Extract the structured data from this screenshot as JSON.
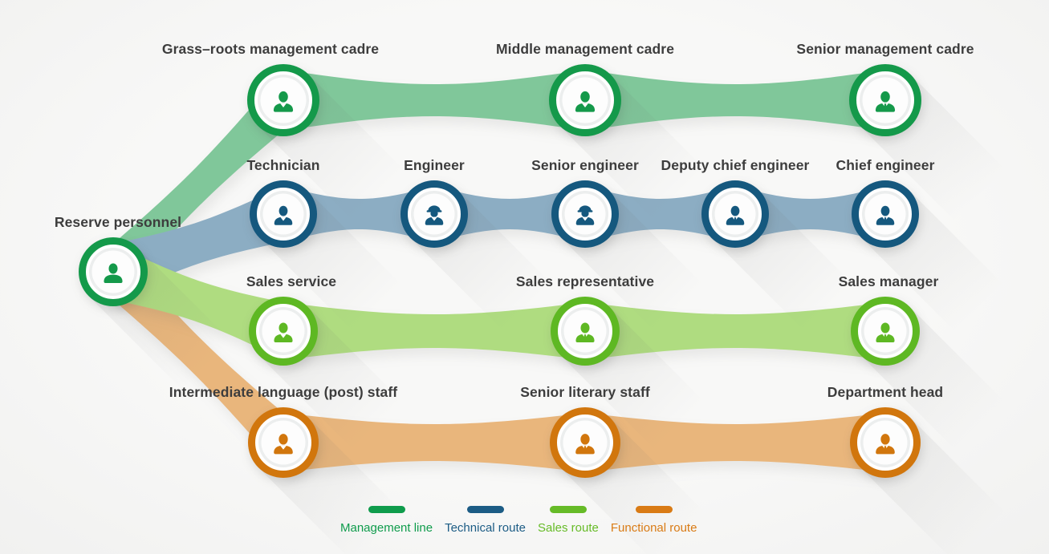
{
  "page": {
    "background": "#f6f6f5",
    "label_color": "#3d3d3d"
  },
  "start": {
    "label": "Reserve personnel",
    "icon": "person-icon",
    "ring_color": "#14994a",
    "icon_color": "#14994a"
  },
  "routes": [
    {
      "name": "Management line",
      "ring_color": "#14994a",
      "icon_color": "#14994a",
      "ribbon_color": "#80c79a",
      "nodes": [
        {
          "label": "Grass–roots management cadre",
          "icon": "person-collar-icon"
        },
        {
          "label": "Middle management cadre",
          "icon": "person-collar-icon"
        },
        {
          "label": "Senior management cadre",
          "icon": "businessman-icon"
        }
      ]
    },
    {
      "name": "Technical route",
      "ring_color": "#15587e",
      "icon_color": "#15587e",
      "ribbon_color": "#8cadc3",
      "nodes": [
        {
          "label": "Technician",
          "icon": "person-collar-icon"
        },
        {
          "label": "Engineer",
          "icon": "engineer-helmet-icon"
        },
        {
          "label": "Senior engineer",
          "icon": "engineer-helmet-icon"
        },
        {
          "label": "Deputy chief engineer",
          "icon": "businessman-icon"
        },
        {
          "label": "Chief engineer",
          "icon": "businessman-icon"
        }
      ]
    },
    {
      "name": "Sales route",
      "ring_color": "#5eb823",
      "icon_color": "#5eb823",
      "ribbon_color": "#afdc80",
      "nodes": [
        {
          "label": "Sales service",
          "icon": "person-collar-icon"
        },
        {
          "label": "Sales representative",
          "icon": "businessman-icon"
        },
        {
          "label": "Sales manager",
          "icon": "businessman-icon"
        }
      ]
    },
    {
      "name": "Functional route",
      "ring_color": "#d1760d",
      "icon_color": "#d1760d",
      "ribbon_color": "#e9b67c",
      "nodes": [
        {
          "label": "Intermediate language (post) staff",
          "icon": "person-collar-icon"
        },
        {
          "label": "Senior literary staff",
          "icon": "businessman-icon"
        },
        {
          "label": "Department head",
          "icon": "businessman-icon"
        }
      ]
    }
  ],
  "legend": {
    "items": [
      {
        "label": "Management line",
        "color": "#0f9c4c"
      },
      {
        "label": "Technical route",
        "color": "#1c5c85"
      },
      {
        "label": "Sales route",
        "color": "#66bb27"
      },
      {
        "label": "Functional route",
        "color": "#d97b15"
      }
    ]
  }
}
